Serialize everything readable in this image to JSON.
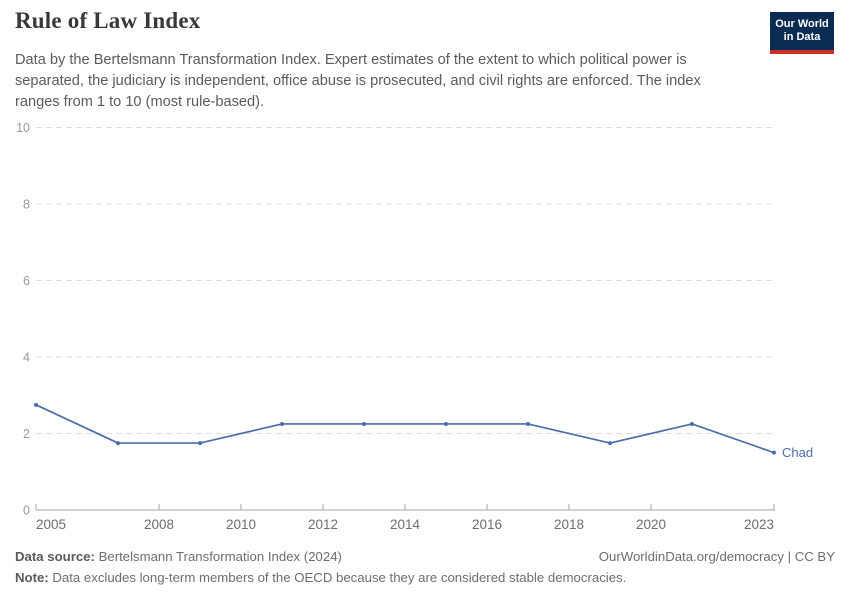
{
  "header": {
    "title": "Rule of Law Index",
    "subtitle": "Data by the Bertelsmann Transformation Index. Expert estimates of the extent to which political power is separated, the judiciary is independent, office abuse is prosecuted, and civil rights are enforced. The index ranges from 1 to 10 (most rule-based).",
    "logo": {
      "line1": "Our World",
      "line2": "in Data",
      "bg_color": "#0a2c53",
      "bar_color": "#c7302b"
    }
  },
  "chart_data": {
    "type": "line",
    "title": "Rule of Law Index",
    "x": [
      2005,
      2007,
      2009,
      2011,
      2013,
      2015,
      2017,
      2019,
      2021,
      2023
    ],
    "series": [
      {
        "name": "Chad",
        "color": "#4C6EA8",
        "values": [
          2.75,
          1.75,
          1.75,
          2.25,
          2.25,
          2.25,
          2.25,
          1.75,
          2.25,
          1.5
        ]
      }
    ],
    "xlabel": "",
    "ylabel": "",
    "xlim": [
      2005,
      2023
    ],
    "ylim": [
      0,
      10
    ],
    "x_ticks": [
      2005,
      2008,
      2010,
      2012,
      2014,
      2016,
      2018,
      2020,
      2023
    ],
    "y_ticks": [
      0,
      2,
      4,
      6,
      8,
      10
    ],
    "grid": "horizontal-dashed",
    "legend_position": "end-of-line-label",
    "colors": {
      "grid": "#dedede",
      "axis": "#a5a5a5",
      "x_tick_label": "#6e6e6e",
      "y_tick_label": "#9a9a9a"
    }
  },
  "footer": {
    "source_label": "Data source:",
    "source_value": "Bertelsmann Transformation Index (2024)",
    "rights": "OurWorldinData.org/democracy | CC BY",
    "note_label": "Note:",
    "note_value": "Data excludes long-term members of the OECD because they are considered stable democracies."
  }
}
